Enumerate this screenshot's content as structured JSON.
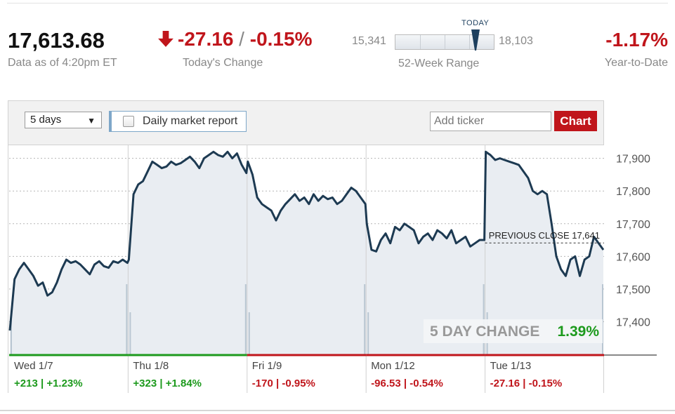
{
  "header": {
    "price": "17,613.68",
    "as_of": "Data as of 4:20pm ET",
    "change_points": "-27.16",
    "change_sep": " / ",
    "change_percent": "-0.15%",
    "change_label": "Today's Change",
    "range_low": "15,341",
    "range_high": "18,103",
    "range_today_label": "TODAY",
    "range_label": "52-Week Range",
    "ytd_value": "-1.17%",
    "ytd_label": "Year-to-Date"
  },
  "toolbar": {
    "period_selected": "5 days",
    "daily_report_label": "Daily market report",
    "ticker_placeholder": "Add ticker",
    "chart_button": "Chart"
  },
  "colors": {
    "negative": "#c0151b",
    "positive": "#1d9a1d",
    "line": "#1d3a52",
    "fill": "#e9edf2"
  },
  "chart_data": {
    "type": "area",
    "ylim": [
      17300,
      17940
    ],
    "y_ticks": [
      "17,900",
      "17,800",
      "17,700",
      "17,600",
      "17,500",
      "17,400"
    ],
    "y_tick_values": [
      17900,
      17800,
      17700,
      17600,
      17500,
      17400
    ],
    "previous_close_label": "PREVIOUS CLOSE 17,641",
    "previous_close": 17641,
    "summary_label": "5 DAY CHANGE",
    "summary_value": "1.39%",
    "days": [
      {
        "label": "Wed 1/7",
        "change": "+213 | +1.23%",
        "positive": true
      },
      {
        "label": "Thu 1/8",
        "change": "+323 | +1.84%",
        "positive": true
      },
      {
        "label": "Fri 1/9",
        "change": "-170 | -0.95%",
        "positive": false
      },
      {
        "label": "Mon 1/12",
        "change": "-96.53 | -0.54%",
        "positive": false
      },
      {
        "label": "Tue 1/13",
        "change": "-27.16 | -0.15%",
        "positive": false
      }
    ],
    "series": [
      {
        "values": [
          [
            17373,
            17530,
            17560,
            17580,
            17560,
            17540,
            17510,
            17520,
            17480,
            17490,
            17520,
            17560,
            17590,
            17580,
            17585,
            17575,
            17560,
            17545,
            17575,
            17585,
            17570,
            17565,
            17585,
            17580,
            17590,
            17580
          ],
          [
            17590,
            17790,
            17820,
            17830,
            17860,
            17890,
            17880,
            17870,
            17875,
            17890,
            17880,
            17885,
            17895,
            17905,
            17890,
            17870,
            17900,
            17910,
            17920,
            17910,
            17905,
            17920,
            17900,
            17915,
            17880,
            17855
          ],
          [
            17890,
            17850,
            17780,
            17760,
            17750,
            17740,
            17710,
            17740,
            17760,
            17775,
            17790,
            17770,
            17780,
            17760,
            17790,
            17770,
            17785,
            17775,
            17780,
            17760,
            17770,
            17790,
            17810,
            17800,
            17780,
            17760
          ],
          [
            17700,
            17620,
            17615,
            17650,
            17670,
            17640,
            17690,
            17680,
            17700,
            17690,
            17680,
            17640,
            17660,
            17670,
            17650,
            17680,
            17670,
            17655,
            17680,
            17640,
            17650,
            17660,
            17630,
            17640,
            17650,
            17650
          ],
          [
            17920,
            17910,
            17895,
            17900,
            17895,
            17890,
            17885,
            17880,
            17860,
            17840,
            17800,
            17790,
            17800,
            17790,
            17700,
            17600,
            17560,
            17540,
            17590,
            17600,
            17540,
            17590,
            17600,
            17660,
            17640,
            17620
          ]
        ]
      }
    ]
  }
}
